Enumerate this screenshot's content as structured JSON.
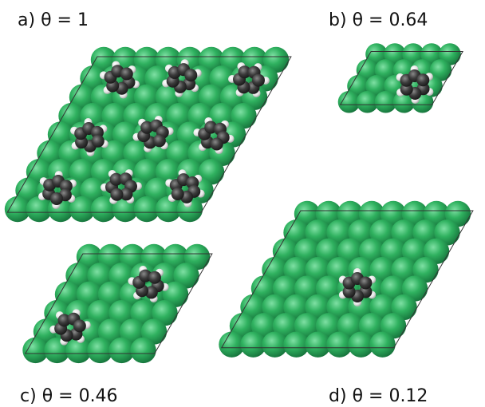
{
  "panels": [
    {
      "label": "a)",
      "caption": "θ = 1"
    },
    {
      "label": "b)",
      "caption": "θ = 0.64"
    },
    {
      "label": "c)",
      "caption": "θ = 0.46"
    },
    {
      "label": "d)",
      "caption": "θ = 0.12"
    }
  ]
}
